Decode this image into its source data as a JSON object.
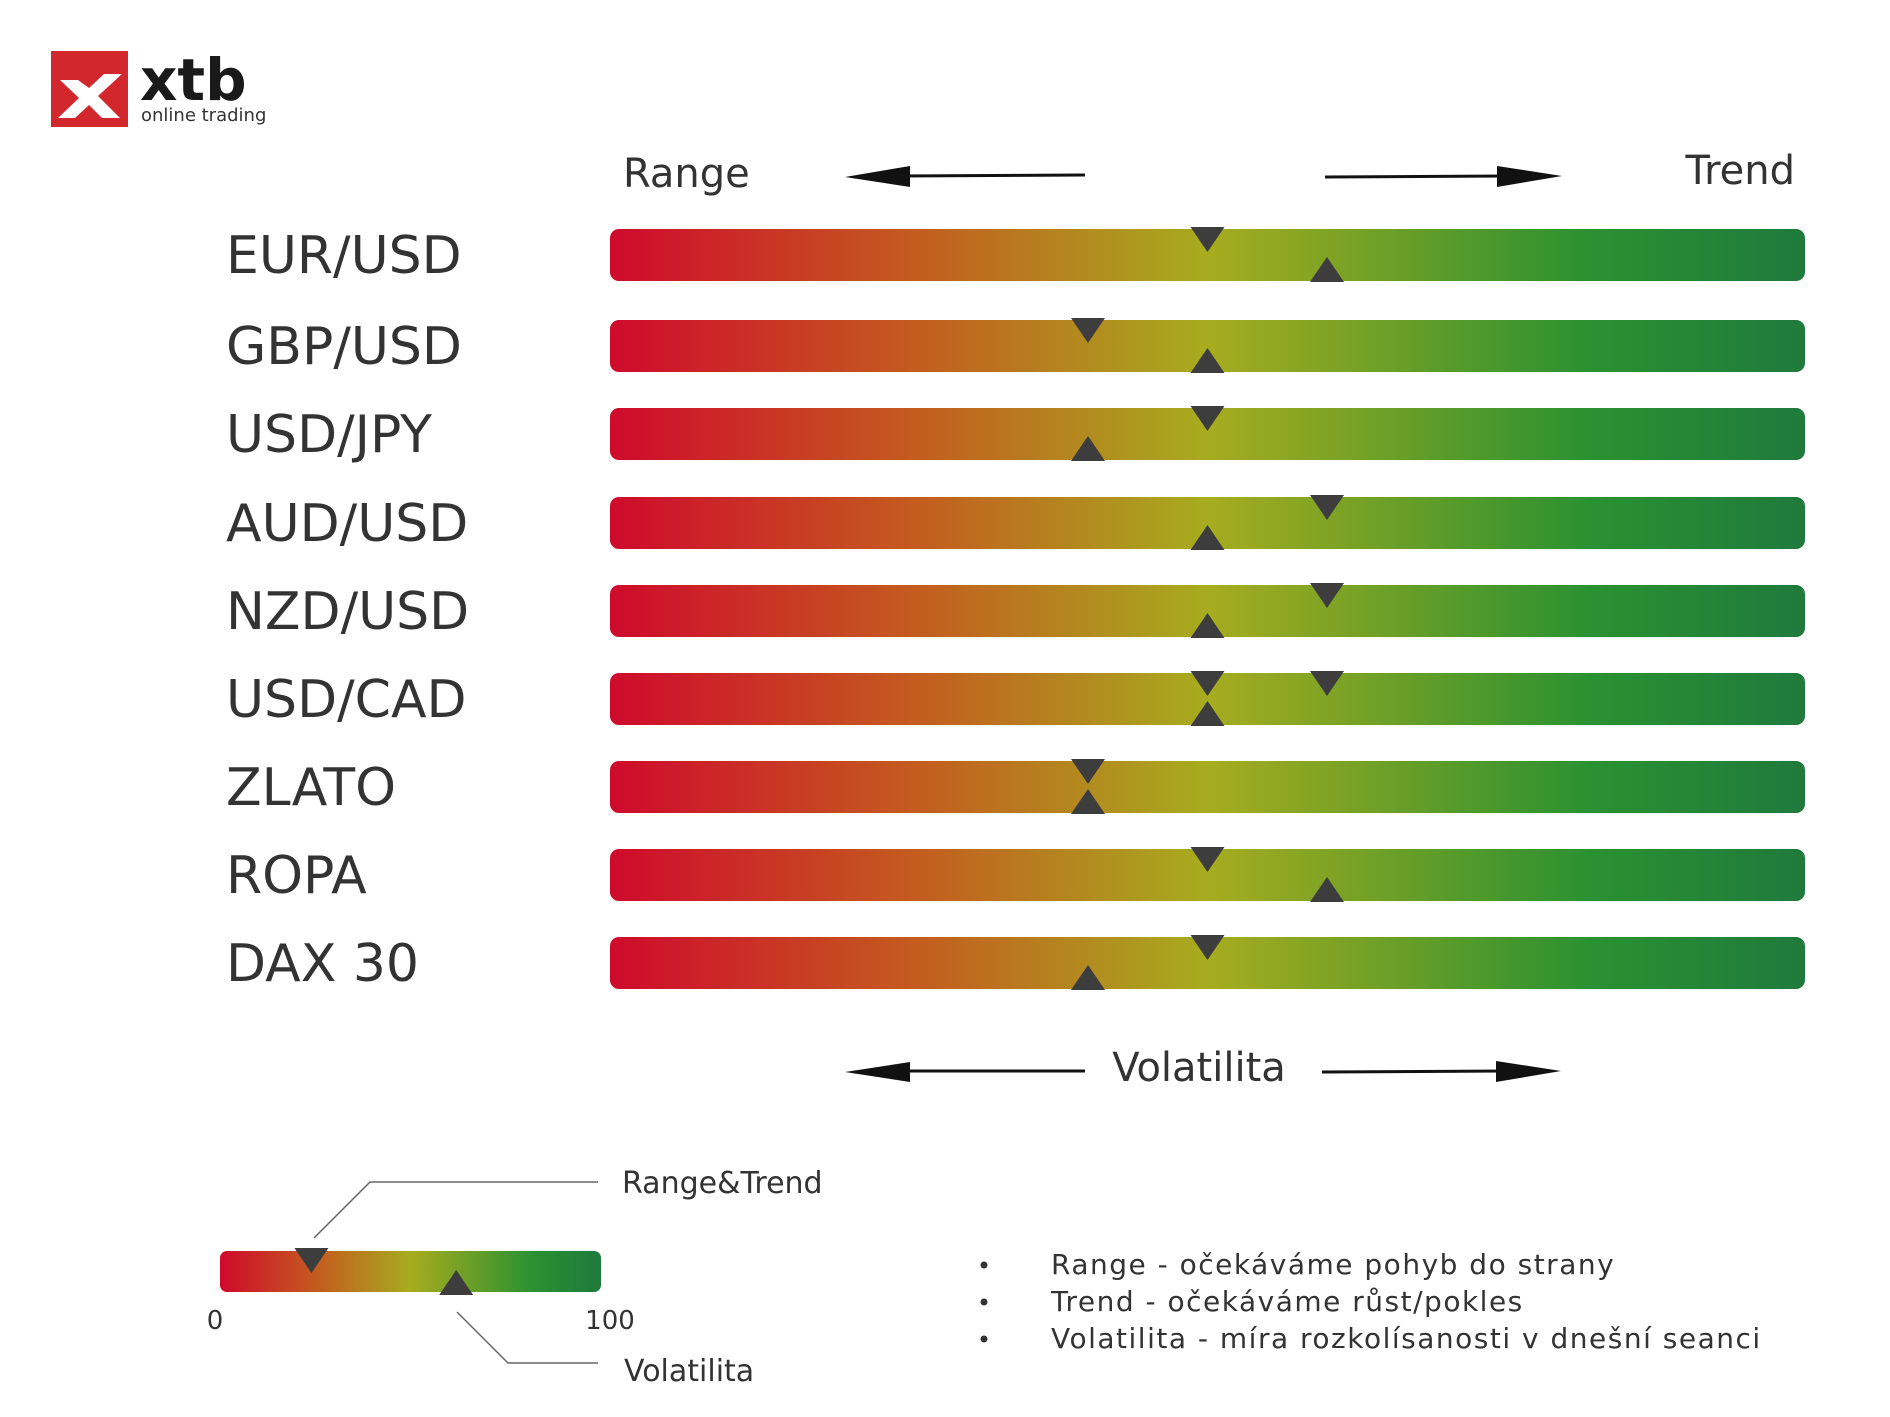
{
  "brand": {
    "name": "xtb",
    "tagline": "online trading",
    "accent": "#d2272c"
  },
  "chart_data": {
    "type": "bar",
    "scale": [
      0,
      100
    ],
    "header": {
      "left": "Range",
      "right": "Trend"
    },
    "footer": {
      "label": "Volatilita"
    },
    "gradient": [
      "#cf0a2c",
      "#c45a1f",
      "#a7ac1f",
      "#2a9131",
      "#1f7a3c"
    ],
    "categories": [
      "EUR/USD",
      "GBP/USD",
      "USD/JPY",
      "AUD/USD",
      "NZD/USD",
      "USD/CAD",
      "ZLATO",
      "ROPA",
      "DAX 30"
    ],
    "series": [
      {
        "name": "Range&Trend",
        "marker": "down",
        "values": [
          [
            50
          ],
          [
            40
          ],
          [
            50
          ],
          [
            60
          ],
          [
            60
          ],
          [
            50,
            60
          ],
          [
            40
          ],
          [
            50
          ],
          [
            50
          ]
        ]
      },
      {
        "name": "Volatilita",
        "marker": "up",
        "values": [
          [
            60
          ],
          [
            50
          ],
          [
            40
          ],
          [
            50
          ],
          [
            50
          ],
          [
            50
          ],
          [
            40
          ],
          [
            60
          ],
          [
            40
          ]
        ]
      }
    ]
  },
  "legend": {
    "title_top": "Range&Trend",
    "title_bottom": "Volatilita",
    "min_label": "0",
    "max_label": "100",
    "example_range_trend": 24,
    "example_volatility": 62
  },
  "notes": [
    "Range - očekáváme pohyb do strany",
    "Trend - očekáváme růst/pokles",
    "Volatilita - míra rozkolísanosti v dnešní seanci"
  ],
  "colors": {
    "marker": "#3d3d3d",
    "arrow": "#111111",
    "text": "#333333"
  }
}
